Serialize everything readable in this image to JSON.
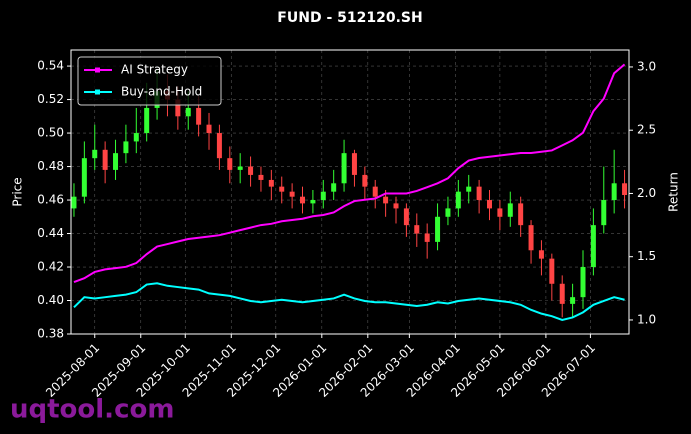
{
  "chart_data": {
    "type": "candlestick",
    "title": "FUND - 512120.SH",
    "ylabel": "Price",
    "y2label": "Return",
    "x": [
      "2025-07-18",
      "2025-07-25",
      "2025-08-01",
      "2025-08-08",
      "2025-08-15",
      "2025-08-22",
      "2025-08-29",
      "2025-09-05",
      "2025-09-12",
      "2025-09-19",
      "2025-09-26",
      "2025-10-03",
      "2025-10-10",
      "2025-10-17",
      "2025-10-24",
      "2025-10-31",
      "2025-11-07",
      "2025-11-14",
      "2025-11-21",
      "2025-11-28",
      "2025-12-05",
      "2025-12-12",
      "2025-12-19",
      "2025-12-26",
      "2026-01-02",
      "2026-01-09",
      "2026-01-16",
      "2026-01-23",
      "2026-01-30",
      "2026-02-06",
      "2026-02-13",
      "2026-02-20",
      "2026-02-27",
      "2026-03-06",
      "2026-03-13",
      "2026-03-20",
      "2026-03-27",
      "2026-04-03",
      "2026-04-10",
      "2026-04-17",
      "2026-04-24",
      "2026-05-01",
      "2026-05-08",
      "2026-05-15",
      "2026-05-22",
      "2026-05-29",
      "2026-06-05",
      "2026-06-12",
      "2026-06-19",
      "2026-06-26",
      "2026-07-03",
      "2026-07-10",
      "2026-07-17",
      "2026-07-24"
    ],
    "open": [
      0.455,
      0.462,
      0.485,
      0.49,
      0.478,
      0.488,
      0.495,
      0.5,
      0.515,
      0.525,
      0.52,
      0.51,
      0.515,
      0.505,
      0.5,
      0.485,
      0.478,
      0.48,
      0.475,
      0.472,
      0.468,
      0.465,
      0.462,
      0.458,
      0.46,
      0.465,
      0.47,
      0.488,
      0.475,
      0.468,
      0.462,
      0.458,
      0.455,
      0.445,
      0.44,
      0.435,
      0.45,
      0.455,
      0.465,
      0.468,
      0.46,
      0.455,
      0.45,
      0.458,
      0.445,
      0.43,
      0.425,
      0.41,
      0.398,
      0.402,
      0.42,
      0.445,
      0.46,
      0.47
    ],
    "high": [
      0.47,
      0.495,
      0.505,
      0.495,
      0.496,
      0.505,
      0.515,
      0.53,
      0.538,
      0.535,
      0.528,
      0.525,
      0.522,
      0.512,
      0.505,
      0.492,
      0.488,
      0.486,
      0.48,
      0.478,
      0.474,
      0.47,
      0.468,
      0.466,
      0.472,
      0.478,
      0.496,
      0.49,
      0.48,
      0.472,
      0.466,
      0.462,
      0.458,
      0.452,
      0.446,
      0.458,
      0.462,
      0.472,
      0.475,
      0.472,
      0.466,
      0.46,
      0.465,
      0.462,
      0.448,
      0.436,
      0.428,
      0.415,
      0.41,
      0.43,
      0.455,
      0.48,
      0.49,
      0.478
    ],
    "low": [
      0.45,
      0.458,
      0.478,
      0.47,
      0.472,
      0.482,
      0.488,
      0.495,
      0.508,
      0.51,
      0.502,
      0.502,
      0.498,
      0.49,
      0.478,
      0.47,
      0.47,
      0.468,
      0.465,
      0.46,
      0.458,
      0.455,
      0.452,
      0.452,
      0.455,
      0.46,
      0.465,
      0.468,
      0.46,
      0.455,
      0.45,
      0.446,
      0.438,
      0.432,
      0.425,
      0.43,
      0.445,
      0.45,
      0.458,
      0.452,
      0.448,
      0.442,
      0.444,
      0.438,
      0.422,
      0.415,
      0.4,
      0.39,
      0.39,
      0.395,
      0.415,
      0.44,
      0.452,
      0.455
    ],
    "close": [
      0.462,
      0.485,
      0.49,
      0.478,
      0.488,
      0.495,
      0.5,
      0.515,
      0.525,
      0.52,
      0.51,
      0.515,
      0.505,
      0.5,
      0.485,
      0.478,
      0.48,
      0.475,
      0.472,
      0.468,
      0.465,
      0.462,
      0.458,
      0.46,
      0.465,
      0.47,
      0.488,
      0.475,
      0.468,
      0.462,
      0.458,
      0.455,
      0.445,
      0.44,
      0.435,
      0.45,
      0.455,
      0.465,
      0.468,
      0.46,
      0.455,
      0.45,
      0.458,
      0.445,
      0.43,
      0.425,
      0.41,
      0.398,
      0.402,
      0.42,
      0.445,
      0.46,
      0.47,
      0.463
    ],
    "up_color": "#33ff33",
    "down_color": "#ff4444",
    "series": [
      {
        "name": "AI Strategy",
        "color": "#ff00ff",
        "axis": "y2",
        "values": [
          1.3,
          1.33,
          1.38,
          1.4,
          1.41,
          1.42,
          1.45,
          1.52,
          1.58,
          1.6,
          1.62,
          1.64,
          1.65,
          1.66,
          1.67,
          1.69,
          1.71,
          1.73,
          1.75,
          1.76,
          1.78,
          1.79,
          1.8,
          1.82,
          1.83,
          1.85,
          1.9,
          1.94,
          1.95,
          1.96,
          2.0,
          2.0,
          2.0,
          2.02,
          2.05,
          2.08,
          2.12,
          2.2,
          2.26,
          2.28,
          2.29,
          2.3,
          2.31,
          2.32,
          2.32,
          2.33,
          2.34,
          2.38,
          2.42,
          2.48,
          2.65,
          2.75,
          2.95,
          3.02
        ]
      },
      {
        "name": "Buy-and-Hold",
        "color": "#00ffff",
        "axis": "y2",
        "values": [
          1.1,
          1.18,
          1.17,
          1.18,
          1.19,
          1.2,
          1.22,
          1.28,
          1.29,
          1.27,
          1.26,
          1.25,
          1.24,
          1.21,
          1.2,
          1.19,
          1.17,
          1.15,
          1.14,
          1.15,
          1.16,
          1.15,
          1.14,
          1.15,
          1.16,
          1.17,
          1.2,
          1.17,
          1.15,
          1.14,
          1.14,
          1.13,
          1.12,
          1.11,
          1.12,
          1.14,
          1.13,
          1.15,
          1.16,
          1.17,
          1.16,
          1.15,
          1.14,
          1.12,
          1.08,
          1.05,
          1.03,
          1.0,
          1.02,
          1.06,
          1.12,
          1.15,
          1.18,
          1.16
        ]
      }
    ],
    "xlim": [
      "2025-07-16",
      "2026-07-27"
    ],
    "xticks": [
      "2025-08-01",
      "2025-09-01",
      "2025-10-01",
      "2025-11-01",
      "2025-12-01",
      "2026-01-01",
      "2026-02-01",
      "2026-03-01",
      "2026-04-01",
      "2026-05-01",
      "2026-06-01",
      "2026-07-01"
    ],
    "ylim": [
      0.38,
      0.5496
    ],
    "yticks": [
      0.38,
      {
        "value": 0.4,
        "label": "0.40"
      },
      0.42,
      0.44,
      0.46,
      0.48,
      {
        "value": 0.5,
        "label": "0.50"
      },
      0.52,
      0.54
    ],
    "y2lim": [
      0.889,
      3.134
    ],
    "y2ticks": [
      {
        "value": 1,
        "label": "1.0"
      },
      1.5,
      {
        "value": 2,
        "label": "2.0"
      },
      2.5,
      {
        "value": 3,
        "label": "3.0"
      }
    ],
    "grid": true,
    "legend": "upper left"
  },
  "watermark": "uqtool.com"
}
